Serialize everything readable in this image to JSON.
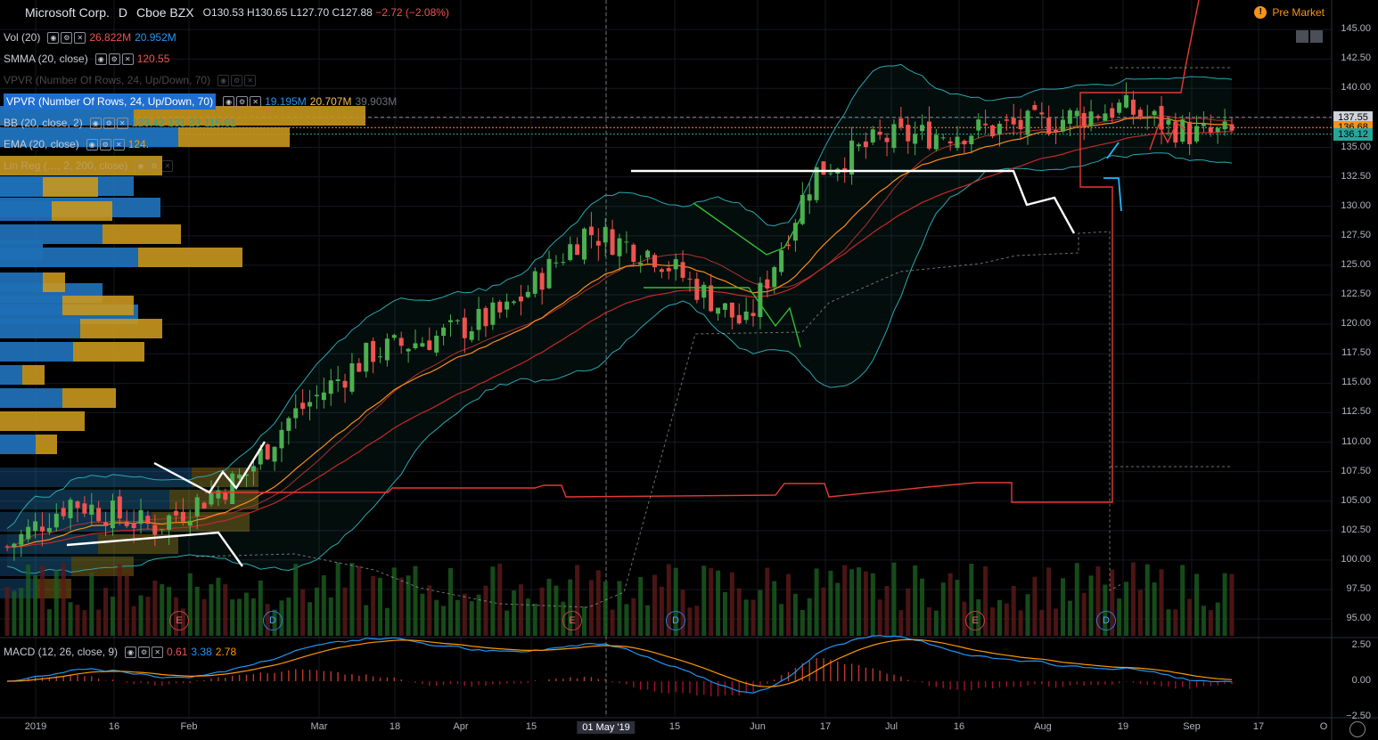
{
  "header": {
    "symbol_name": "Microsoft Corp.",
    "interval": "D",
    "exchange": "Cboe BZX",
    "open": "O130.53",
    "high": "H130.65",
    "low": "L127.70",
    "close": "C127.88",
    "change": "−2.72 (−2.08%)",
    "pre_market": "Pre Market"
  },
  "indicators": [
    {
      "label": "Vol (20)",
      "v1": "26.822M",
      "v2": "20.952M",
      "c1": "#ef5350",
      "c2": "#2196f3"
    },
    {
      "label": "SMMA (20, close)",
      "v1": "120.55",
      "v2": "",
      "c1": "#ef5350",
      "c2": ""
    },
    {
      "label": "VPVR (Number Of Rows, 24, Up/Down, 70)",
      "v1": "",
      "v2": "",
      "c1": "",
      "c2": ""
    },
    {
      "label": "VPVR (Number Of Rows, 24, Up/Down, 70)",
      "v1": "19.195M",
      "v2": "20.707M",
      "v3": "39.903M",
      "c1": "#2196f3",
      "c2": "#f2c14e",
      "c3": "#6b6f78"
    },
    {
      "label": "BB (20, close, 2)",
      "v1": "123.42",
      "v2": "131.23",
      "v3": "115.61",
      "c1": "#26a69a",
      "c2": "#26a69a",
      "c3": "#26a69a"
    },
    {
      "label": "EMA (20, close)",
      "v1": "124.",
      "v2": "",
      "c1": "#ff9800",
      "c2": ""
    },
    {
      "label": "Lin Reg (…, 2, 200, close)",
      "v1": "",
      "v2": "",
      "c1": "",
      "c2": ""
    }
  ],
  "macd": {
    "label": "MACD (12, 26, close, 9)",
    "v1": "0.61",
    "v2": "3.38",
    "v3": "2.78"
  },
  "y_axis": [
    "145.00",
    "142.50",
    "140.00",
    "137.50",
    "135.00",
    "132.50",
    "130.00",
    "127.50",
    "125.00",
    "122.50",
    "120.00",
    "117.50",
    "115.00",
    "112.50",
    "110.00",
    "107.50",
    "105.00",
    "102.50",
    "100.00",
    "97.50",
    "95.00"
  ],
  "macd_axis": [
    "2.50",
    "0.00",
    "−2.50"
  ],
  "price_tags": [
    {
      "label": "137.55",
      "color": "#d0d3d9"
    },
    {
      "label": "136.68",
      "color": "#f7931a"
    },
    {
      "label": "136.12",
      "color": "#26a69a"
    }
  ],
  "x_axis": [
    "2019",
    "16",
    "Feb",
    "Mar",
    "18",
    "Apr",
    "15",
    "01 May '19",
    "15",
    "Jun",
    "17",
    "Jul",
    "16",
    "Aug",
    "19",
    "Sep",
    "17",
    "O"
  ],
  "events": [
    "E",
    "D",
    "E",
    "D",
    "E",
    "D"
  ],
  "chart_data": {
    "type": "candlestick",
    "series_anchor_close": [
      {
        "date": "2019-01-02",
        "close": 101.1
      },
      {
        "date": "2019-01-15",
        "close": 105.0
      },
      {
        "date": "2019-02-01",
        "close": 102.8
      },
      {
        "date": "2019-02-20",
        "close": 107.2
      },
      {
        "date": "2019-03-01",
        "close": 112.0
      },
      {
        "date": "2019-03-18",
        "close": 117.6
      },
      {
        "date": "2019-04-01",
        "close": 119.0
      },
      {
        "date": "2019-04-15",
        "close": 121.1
      },
      {
        "date": "2019-05-01",
        "close": 127.9
      },
      {
        "date": "2019-05-15",
        "close": 126.0
      },
      {
        "date": "2019-06-03",
        "close": 119.8
      },
      {
        "date": "2019-06-17",
        "close": 132.8
      },
      {
        "date": "2019-07-01",
        "close": 135.7
      },
      {
        "date": "2019-07-16",
        "close": 136.3
      },
      {
        "date": "2019-08-01",
        "close": 136.9
      },
      {
        "date": "2019-08-19",
        "close": 138.4
      },
      {
        "date": "2019-09-03",
        "close": 136.1
      },
      {
        "date": "2019-09-11",
        "close": 136.1
      }
    ],
    "ylim": [
      93.5,
      147.5
    ],
    "macd_ylim": [
      -2.5,
      3.0
    ]
  }
}
